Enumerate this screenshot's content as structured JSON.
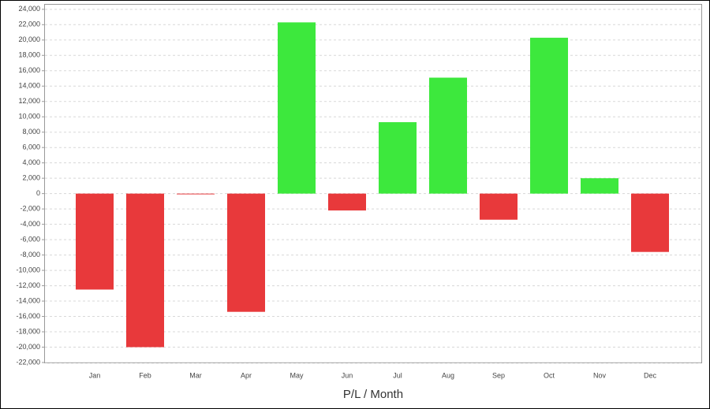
{
  "chart_data": {
    "type": "bar",
    "x_label": "P/L / Month",
    "categories": [
      "Jan",
      "Feb",
      "Mar",
      "Apr",
      "May",
      "Jun",
      "Jul",
      "Aug",
      "Sep",
      "Oct",
      "Nov",
      "Dec"
    ],
    "values": [
      -12500,
      -20000,
      -100,
      -15400,
      22300,
      -2200,
      9300,
      15100,
      -3400,
      20300,
      2000,
      -7600
    ],
    "positive_color": "#3de83d",
    "negative_color": "#e8393b",
    "ylim": [
      -22000,
      24700
    ],
    "yticks": [
      {
        "value": -22000,
        "label": "-22,000"
      },
      {
        "value": -20000,
        "label": "-20,000"
      },
      {
        "value": -18000,
        "label": "-18,000"
      },
      {
        "value": -16000,
        "label": "-16,000"
      },
      {
        "value": -14000,
        "label": "-14,000"
      },
      {
        "value": -12000,
        "label": "-12,000"
      },
      {
        "value": -10000,
        "label": "-10,000"
      },
      {
        "value": -8000,
        "label": "-8,000"
      },
      {
        "value": -6000,
        "label": "-6,000"
      },
      {
        "value": -4000,
        "label": "-4,000"
      },
      {
        "value": -2000,
        "label": "-2,000"
      },
      0,
      {
        "value": 2000,
        "label": "2,000"
      },
      {
        "value": 4000,
        "label": "4,000"
      },
      {
        "value": 6000,
        "label": "6,000"
      },
      {
        "value": 8000,
        "label": "8,000"
      },
      {
        "value": 10000,
        "label": "10,000"
      },
      {
        "value": 12000,
        "label": "12,000"
      },
      {
        "value": 14000,
        "label": "14,000"
      },
      {
        "value": 16000,
        "label": "16,000"
      },
      {
        "value": 18000,
        "label": "18,000"
      },
      {
        "value": 20000,
        "label": "20,000"
      },
      {
        "value": 22000,
        "label": "22,000"
      },
      {
        "value": 24000,
        "label": "24,000"
      }
    ],
    "grid": true
  }
}
